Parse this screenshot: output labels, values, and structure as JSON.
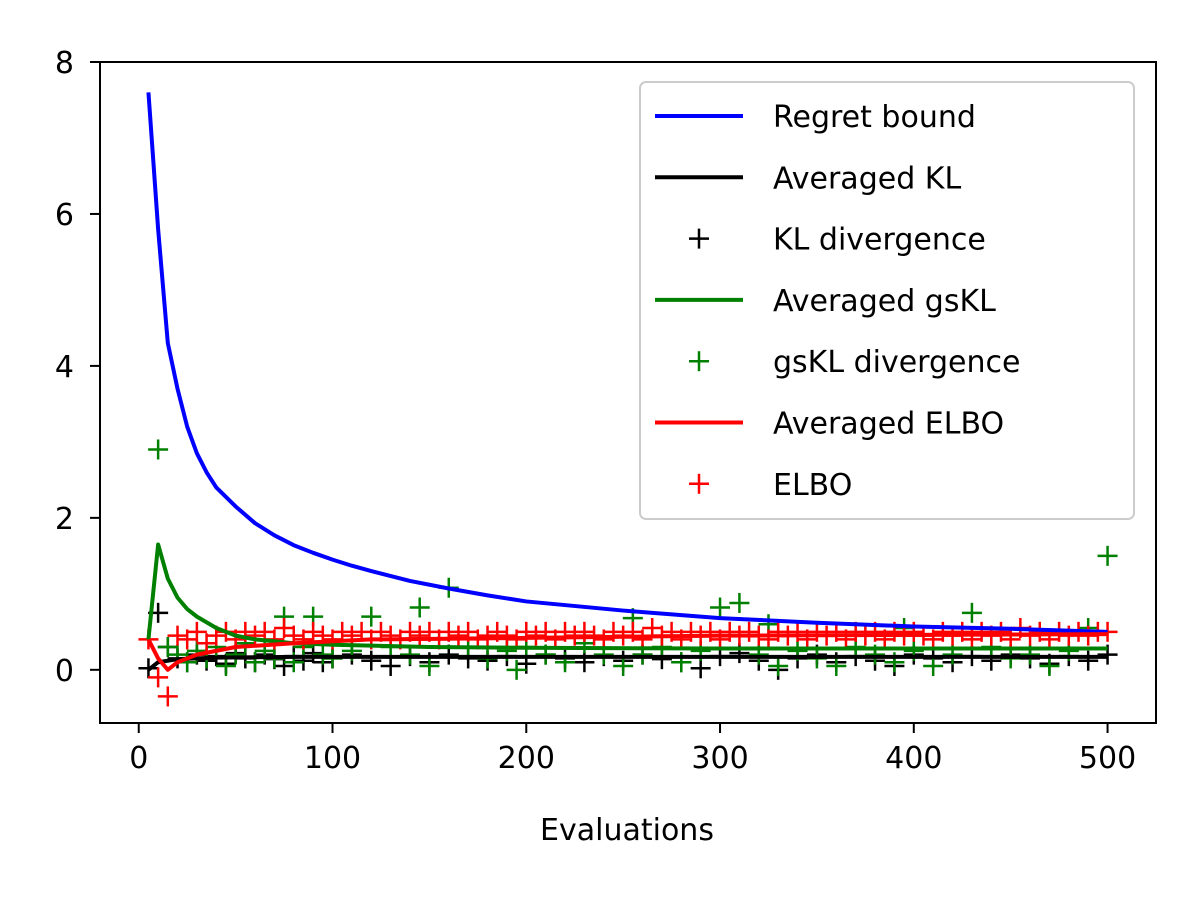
{
  "chart_data": {
    "type": "line",
    "xlabel": "Evaluations",
    "ylabel": "",
    "xlim": [
      -20,
      525
    ],
    "ylim": [
      -0.7,
      8
    ],
    "xticks": [
      "0",
      "100",
      "200",
      "300",
      "400",
      "500"
    ],
    "yticks": [
      "0",
      "2",
      "4",
      "6",
      "8"
    ],
    "grid": false,
    "legend_position": "upper-right",
    "series": [
      {
        "name": "Regret bound",
        "kind": "line",
        "color": "#0000ff",
        "x": [
          5,
          10,
          15,
          20,
          25,
          30,
          35,
          40,
          50,
          60,
          70,
          80,
          90,
          100,
          110,
          120,
          140,
          160,
          180,
          200,
          250,
          300,
          350,
          400,
          450,
          500
        ],
        "y": [
          7.6,
          5.8,
          4.3,
          3.7,
          3.2,
          2.85,
          2.6,
          2.4,
          2.15,
          1.93,
          1.77,
          1.64,
          1.54,
          1.45,
          1.37,
          1.3,
          1.17,
          1.07,
          0.98,
          0.9,
          0.78,
          0.68,
          0.62,
          0.57,
          0.54,
          0.5
        ]
      },
      {
        "name": "Averaged KL",
        "kind": "line",
        "color": "#000000",
        "x": [
          5,
          10,
          20,
          40,
          80,
          150,
          250,
          350,
          450,
          500
        ],
        "y": [
          0.0,
          0.1,
          0.14,
          0.16,
          0.17,
          0.17,
          0.17,
          0.17,
          0.17,
          0.17
        ]
      },
      {
        "name": "KL divergence",
        "kind": "scatter",
        "color": "#000000",
        "x": [
          5,
          10,
          15,
          20,
          25,
          30,
          35,
          40,
          45,
          50,
          55,
          60,
          65,
          70,
          75,
          80,
          85,
          90,
          95,
          100,
          110,
          120,
          130,
          140,
          150,
          160,
          170,
          180,
          190,
          200,
          210,
          220,
          230,
          240,
          250,
          260,
          270,
          280,
          290,
          300,
          310,
          320,
          330,
          340,
          350,
          360,
          370,
          380,
          390,
          400,
          410,
          420,
          430,
          440,
          450,
          460,
          470,
          480,
          490,
          500
        ],
        "y": [
          0.02,
          0.75,
          0.3,
          0.15,
          0.1,
          0.2,
          0.12,
          0.18,
          0.08,
          0.22,
          0.15,
          0.1,
          0.2,
          0.14,
          0.05,
          0.18,
          0.12,
          0.22,
          0.1,
          0.15,
          0.2,
          0.12,
          0.05,
          0.18,
          0.1,
          0.2,
          0.15,
          0.12,
          0.18,
          0.08,
          0.2,
          0.15,
          0.1,
          0.18,
          0.12,
          0.2,
          0.14,
          0.1,
          0.02,
          0.18,
          0.22,
          0.12,
          0.0,
          0.15,
          0.2,
          0.1,
          0.18,
          0.12,
          0.05,
          0.2,
          0.15,
          0.1,
          0.18,
          0.12,
          0.2,
          0.15,
          0.08,
          0.18,
          0.12,
          0.2
        ]
      },
      {
        "name": "Averaged gsKL",
        "kind": "line",
        "color": "#008000",
        "x": [
          5,
          10,
          15,
          20,
          25,
          30,
          40,
          50,
          60,
          80,
          100,
          150,
          200,
          300,
          400,
          500
        ],
        "y": [
          0.4,
          1.65,
          1.2,
          0.95,
          0.8,
          0.7,
          0.55,
          0.45,
          0.4,
          0.35,
          0.33,
          0.3,
          0.29,
          0.28,
          0.28,
          0.28
        ]
      },
      {
        "name": "gsKL divergence",
        "kind": "scatter",
        "color": "#008000",
        "x": [
          10,
          15,
          20,
          25,
          30,
          35,
          40,
          45,
          50,
          55,
          60,
          65,
          70,
          75,
          80,
          85,
          90,
          95,
          100,
          110,
          120,
          130,
          140,
          145,
          150,
          160,
          170,
          180,
          190,
          195,
          200,
          210,
          220,
          230,
          240,
          250,
          255,
          260,
          270,
          280,
          290,
          300,
          310,
          320,
          325,
          330,
          340,
          350,
          360,
          370,
          380,
          390,
          395,
          400,
          410,
          420,
          430,
          440,
          450,
          460,
          470,
          480,
          490,
          500
        ],
        "y": [
          2.9,
          0.3,
          0.2,
          0.1,
          0.25,
          0.15,
          0.3,
          0.05,
          0.2,
          0.35,
          0.1,
          0.25,
          0.15,
          0.7,
          0.1,
          0.3,
          0.7,
          0.2,
          0.15,
          0.25,
          0.7,
          0.3,
          0.2,
          0.82,
          0.05,
          1.08,
          0.3,
          0.15,
          0.25,
          0.0,
          0.3,
          0.2,
          0.1,
          0.35,
          0.2,
          0.05,
          0.68,
          0.2,
          0.3,
          0.1,
          0.25,
          0.82,
          0.88,
          0.2,
          0.6,
          0.05,
          0.25,
          0.15,
          0.05,
          0.3,
          0.2,
          0.1,
          0.55,
          0.25,
          0.05,
          0.2,
          0.75,
          0.3,
          0.15,
          0.2,
          0.05,
          0.25,
          0.55,
          1.5
        ]
      },
      {
        "name": "Averaged ELBO",
        "kind": "line",
        "color": "#ff0000",
        "x": [
          5,
          10,
          15,
          20,
          30,
          50,
          80,
          120,
          200,
          300,
          400,
          500
        ],
        "y": [
          0.4,
          0.15,
          0.0,
          0.1,
          0.2,
          0.3,
          0.35,
          0.4,
          0.42,
          0.45,
          0.46,
          0.47
        ]
      },
      {
        "name": "ELBO",
        "kind": "scatter",
        "color": "#ff0000",
        "x": [
          5,
          10,
          15,
          20,
          25,
          30,
          35,
          40,
          45,
          50,
          55,
          60,
          65,
          70,
          75,
          80,
          85,
          90,
          95,
          100,
          105,
          110,
          115,
          120,
          125,
          130,
          135,
          140,
          145,
          150,
          155,
          160,
          165,
          170,
          175,
          180,
          185,
          190,
          195,
          200,
          205,
          210,
          215,
          220,
          225,
          230,
          235,
          240,
          245,
          250,
          255,
          260,
          265,
          270,
          275,
          280,
          285,
          290,
          295,
          300,
          305,
          310,
          315,
          320,
          325,
          330,
          335,
          340,
          345,
          350,
          355,
          360,
          365,
          370,
          375,
          380,
          385,
          390,
          395,
          400,
          405,
          410,
          415,
          420,
          425,
          430,
          435,
          440,
          445,
          450,
          455,
          460,
          465,
          470,
          475,
          480,
          485,
          490,
          495,
          500
        ],
        "y": [
          0.4,
          -0.1,
          -0.35,
          0.45,
          0.4,
          0.5,
          0.35,
          0.45,
          0.5,
          0.4,
          0.5,
          0.45,
          0.5,
          0.4,
          0.55,
          0.45,
          0.4,
          0.5,
          0.45,
          0.4,
          0.5,
          0.45,
          0.5,
          0.4,
          0.5,
          0.45,
          0.4,
          0.5,
          0.45,
          0.5,
          0.4,
          0.5,
          0.45,
          0.5,
          0.4,
          0.45,
          0.5,
          0.45,
          0.4,
          0.5,
          0.45,
          0.5,
          0.4,
          0.5,
          0.45,
          0.5,
          0.45,
          0.4,
          0.5,
          0.45,
          0.5,
          0.4,
          0.55,
          0.45,
          0.5,
          0.4,
          0.5,
          0.45,
          0.5,
          0.4,
          0.5,
          0.45,
          0.5,
          0.45,
          0.4,
          0.5,
          0.45,
          0.5,
          0.4,
          0.5,
          0.45,
          0.5,
          0.4,
          0.5,
          0.45,
          0.5,
          0.4,
          0.5,
          0.45,
          0.5,
          0.45,
          0.4,
          0.5,
          0.45,
          0.5,
          0.4,
          0.5,
          0.45,
          0.5,
          0.4,
          0.55,
          0.45,
          0.5,
          0.4,
          0.5,
          0.45,
          0.5,
          0.45,
          0.5,
          0.5
        ]
      }
    ]
  }
}
